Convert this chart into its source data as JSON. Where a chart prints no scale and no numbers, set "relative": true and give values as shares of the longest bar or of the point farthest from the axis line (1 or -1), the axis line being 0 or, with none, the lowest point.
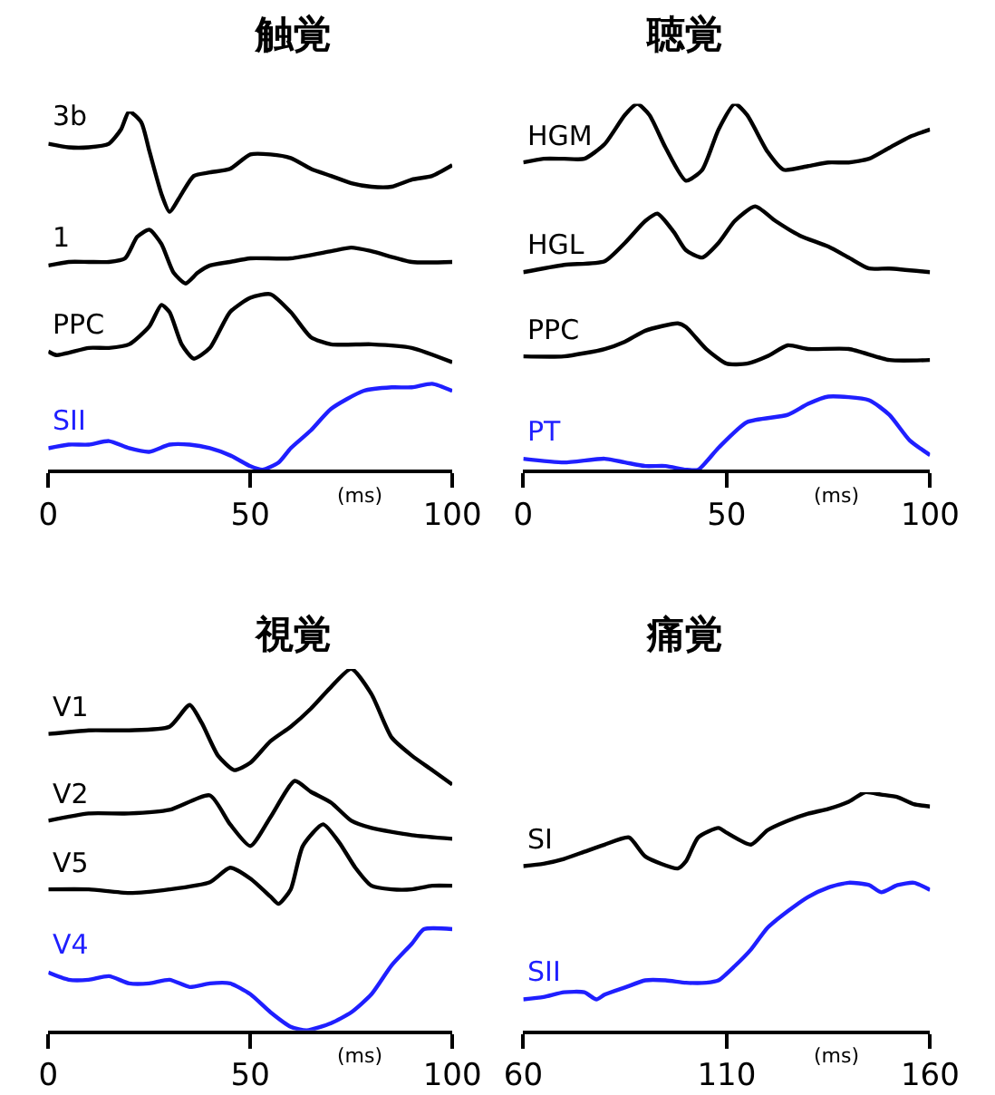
{
  "chart_data": [
    {
      "type": "line",
      "title": "触覚",
      "xlabel": "(ms)",
      "relative": true,
      "xlim": [
        0,
        100
      ],
      "xticks": [
        0,
        50,
        100
      ],
      "line_style": "solid",
      "marker": "none",
      "series": [
        {
          "name": "3b",
          "color": "#000000",
          "x": [
            0,
            5,
            10,
            15,
            18,
            20,
            23,
            25,
            28,
            30,
            33,
            36,
            40,
            45,
            50,
            55,
            60,
            65,
            70,
            75,
            80,
            85,
            90,
            95,
            100
          ],
          "values": [
            0.91,
            0.9,
            0.9,
            0.91,
            0.95,
            1.0,
            0.97,
            0.89,
            0.77,
            0.72,
            0.77,
            0.82,
            0.83,
            0.84,
            0.88,
            0.88,
            0.87,
            0.84,
            0.82,
            0.8,
            0.79,
            0.79,
            0.81,
            0.82,
            0.85
          ]
        },
        {
          "name": "1",
          "color": "#000000",
          "x": [
            0,
            5,
            10,
            15,
            19,
            22,
            25,
            28,
            31,
            34,
            37,
            40,
            45,
            50,
            60,
            70,
            75,
            80,
            90,
            100
          ],
          "values": [
            0.57,
            0.58,
            0.58,
            0.58,
            0.59,
            0.65,
            0.67,
            0.63,
            0.55,
            0.52,
            0.55,
            0.57,
            0.58,
            0.59,
            0.59,
            0.61,
            0.62,
            0.61,
            0.58,
            0.58
          ]
        },
        {
          "name": "PPC",
          "color": "#000000",
          "x": [
            0,
            2,
            10,
            15,
            20,
            25,
            28,
            30,
            33,
            36,
            40,
            45,
            50,
            55,
            60,
            65,
            70,
            80,
            90,
            100
          ],
          "values": [
            0.33,
            0.32,
            0.34,
            0.34,
            0.35,
            0.4,
            0.46,
            0.44,
            0.35,
            0.31,
            0.34,
            0.44,
            0.48,
            0.49,
            0.44,
            0.37,
            0.35,
            0.35,
            0.34,
            0.3
          ]
        },
        {
          "name": "SII",
          "color": "#1f1fff",
          "x": [
            0,
            5,
            10,
            15,
            20,
            25,
            30,
            35,
            40,
            45,
            50,
            53,
            57,
            60,
            65,
            70,
            78,
            85,
            90,
            95,
            100
          ],
          "values": [
            0.06,
            0.07,
            0.07,
            0.08,
            0.06,
            0.05,
            0.07,
            0.07,
            0.06,
            0.04,
            0.01,
            0.0,
            0.02,
            0.06,
            0.11,
            0.17,
            0.22,
            0.23,
            0.23,
            0.24,
            0.22
          ]
        }
      ]
    },
    {
      "type": "line",
      "title": "聴覚",
      "xlabel": "(ms)",
      "relative": true,
      "xlim": [
        0,
        100
      ],
      "xticks": [
        0,
        50,
        100
      ],
      "line_style": "solid",
      "marker": "none",
      "series": [
        {
          "name": "HGM",
          "color": "#000000",
          "x": [
            0,
            5,
            10,
            15,
            20,
            25,
            28,
            31,
            35,
            40,
            44,
            48,
            52,
            55,
            60,
            64,
            70,
            75,
            80,
            85,
            90,
            95,
            100
          ],
          "values": [
            0.84,
            0.85,
            0.85,
            0.85,
            0.89,
            0.97,
            1.0,
            0.97,
            0.88,
            0.79,
            0.82,
            0.93,
            1.0,
            0.97,
            0.87,
            0.82,
            0.83,
            0.84,
            0.84,
            0.85,
            0.88,
            0.91,
            0.93
          ]
        },
        {
          "name": "HGL",
          "color": "#000000",
          "x": [
            0,
            10,
            20,
            25,
            30,
            33,
            37,
            40,
            44,
            48,
            52,
            57,
            62,
            68,
            75,
            80,
            85,
            90,
            100
          ],
          "values": [
            0.54,
            0.56,
            0.57,
            0.62,
            0.68,
            0.7,
            0.65,
            0.6,
            0.58,
            0.62,
            0.68,
            0.72,
            0.68,
            0.64,
            0.61,
            0.58,
            0.55,
            0.55,
            0.54
          ]
        },
        {
          "name": "PPC",
          "color": "#000000",
          "x": [
            0,
            10,
            20,
            25,
            30,
            38,
            40,
            45,
            50,
            55,
            60,
            65,
            70,
            80,
            90,
            100
          ],
          "values": [
            0.31,
            0.31,
            0.33,
            0.35,
            0.38,
            0.4,
            0.39,
            0.33,
            0.29,
            0.29,
            0.31,
            0.34,
            0.33,
            0.33,
            0.3,
            0.3
          ]
        },
        {
          "name": "PT",
          "color": "#1f1fff",
          "x": [
            0,
            10,
            20,
            25,
            30,
            35,
            40,
            43,
            48,
            55,
            65,
            70,
            75,
            85,
            90,
            95,
            100
          ],
          "values": [
            0.03,
            0.02,
            0.03,
            0.02,
            0.01,
            0.01,
            0.0,
            0.0,
            0.06,
            0.13,
            0.15,
            0.18,
            0.2,
            0.19,
            0.15,
            0.08,
            0.04
          ]
        }
      ]
    },
    {
      "type": "line",
      "title": "視覚",
      "xlabel": "(ms)",
      "relative": true,
      "xlim": [
        0,
        100
      ],
      "xticks": [
        0,
        50,
        100
      ],
      "line_style": "solid",
      "marker": "none",
      "series": [
        {
          "name": "V1",
          "color": "#000000",
          "x": [
            0,
            10,
            20,
            30,
            35,
            38,
            42,
            46,
            50,
            55,
            60,
            65,
            70,
            75,
            80,
            85,
            90,
            95,
            100
          ],
          "values": [
            0.82,
            0.83,
            0.83,
            0.84,
            0.9,
            0.85,
            0.76,
            0.72,
            0.74,
            0.8,
            0.84,
            0.89,
            0.95,
            1.0,
            0.93,
            0.81,
            0.76,
            0.72,
            0.68
          ]
        },
        {
          "name": "V2",
          "color": "#000000",
          "x": [
            0,
            10,
            20,
            30,
            40,
            45,
            50,
            55,
            61,
            65,
            70,
            75,
            80,
            90,
            100
          ],
          "values": [
            0.58,
            0.6,
            0.6,
            0.61,
            0.65,
            0.57,
            0.51,
            0.59,
            0.69,
            0.66,
            0.63,
            0.58,
            0.56,
            0.54,
            0.53
          ]
        },
        {
          "name": "V5",
          "color": "#000000",
          "x": [
            0,
            10,
            20,
            30,
            40,
            45,
            50,
            55,
            57,
            60,
            63,
            68,
            72,
            76,
            80,
            85,
            90,
            95,
            100
          ],
          "values": [
            0.39,
            0.39,
            0.38,
            0.39,
            0.41,
            0.45,
            0.42,
            0.37,
            0.35,
            0.39,
            0.51,
            0.57,
            0.52,
            0.45,
            0.4,
            0.39,
            0.39,
            0.4,
            0.4
          ]
        },
        {
          "name": "V4",
          "color": "#1f1fff",
          "x": [
            0,
            5,
            10,
            15,
            20,
            25,
            30,
            35,
            40,
            45,
            50,
            55,
            60,
            64,
            70,
            75,
            80,
            85,
            90,
            93,
            100
          ],
          "values": [
            0.16,
            0.14,
            0.14,
            0.15,
            0.13,
            0.13,
            0.14,
            0.12,
            0.13,
            0.13,
            0.1,
            0.05,
            0.01,
            0.0,
            0.02,
            0.05,
            0.1,
            0.18,
            0.24,
            0.28,
            0.28
          ]
        }
      ]
    },
    {
      "type": "line",
      "title": "痛覚",
      "xlabel": "(ms)",
      "relative": true,
      "xlim": [
        60,
        160
      ],
      "xticks": [
        60,
        110,
        160
      ],
      "line_style": "solid",
      "marker": "none",
      "series": [
        {
          "name": "SI",
          "color": "#000000",
          "x": [
            60,
            65,
            70,
            75,
            80,
            86,
            90,
            98,
            100,
            103,
            108,
            110,
            116,
            120,
            125,
            130,
            135,
            140,
            144,
            148,
            152,
            156,
            160
          ],
          "values": [
            0.69,
            0.7,
            0.72,
            0.75,
            0.78,
            0.81,
            0.73,
            0.68,
            0.71,
            0.81,
            0.85,
            0.83,
            0.78,
            0.84,
            0.88,
            0.91,
            0.93,
            0.96,
            1.0,
            0.99,
            0.98,
            0.95,
            0.94
          ]
        },
        {
          "name": "SII",
          "color": "#1f1fff",
          "x": [
            60,
            65,
            70,
            75,
            78,
            80,
            85,
            90,
            95,
            100,
            105,
            108,
            112,
            116,
            120,
            125,
            130,
            135,
            140,
            145,
            148,
            152,
            156,
            160
          ],
          "values": [
            0.13,
            0.14,
            0.16,
            0.16,
            0.13,
            0.15,
            0.18,
            0.21,
            0.21,
            0.2,
            0.2,
            0.21,
            0.27,
            0.34,
            0.43,
            0.5,
            0.56,
            0.6,
            0.62,
            0.61,
            0.58,
            0.61,
            0.62,
            0.59
          ]
        }
      ]
    }
  ]
}
